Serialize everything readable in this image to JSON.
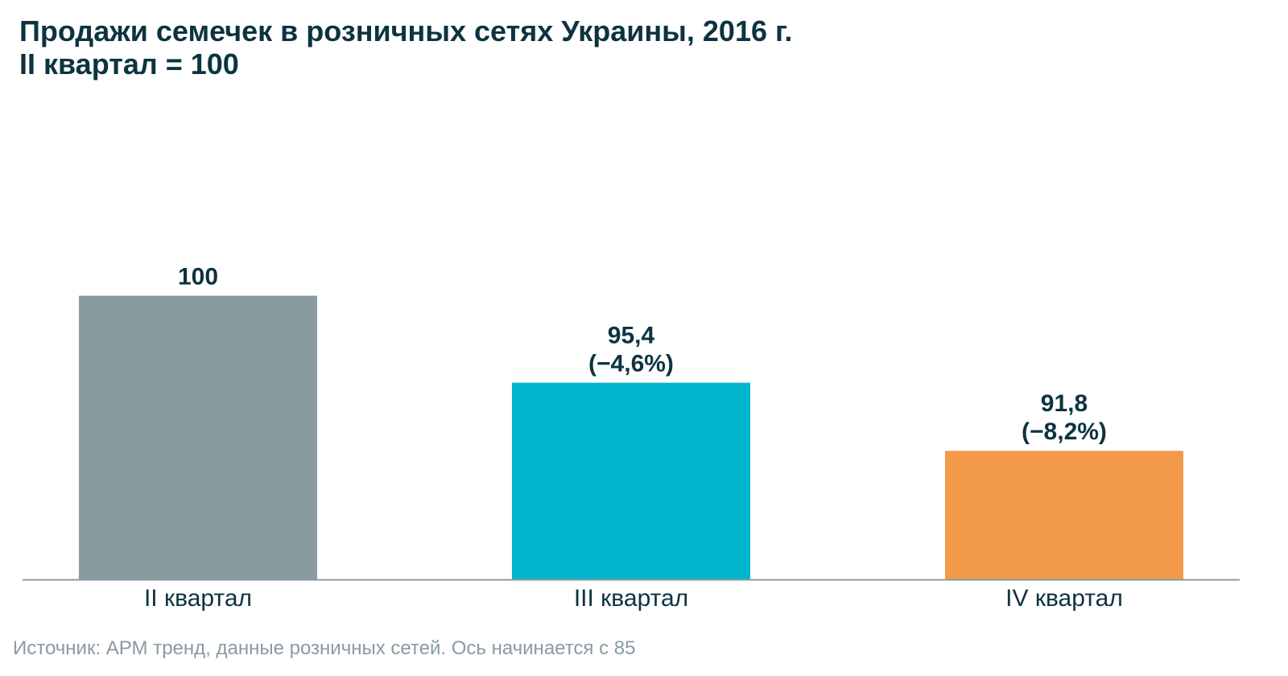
{
  "chart_data": {
    "type": "bar",
    "title": "Продажи семечек в розничных сетях Украины, 2016 г.",
    "subtitle": "II квартал = 100",
    "categories": [
      "II квартал",
      "III квартал",
      "IV квартал"
    ],
    "values": [
      100,
      95.4,
      91.8
    ],
    "data_labels": [
      [
        "100"
      ],
      [
        "95,4",
        "(−4,6%)"
      ],
      [
        "91,8",
        "(−8,2%)"
      ]
    ],
    "colors": [
      "#8a9ba0",
      "#00b5cc",
      "#f29a4a"
    ],
    "ylim": [
      85,
      105
    ],
    "grid": false,
    "legend": "none",
    "xlabel": "",
    "ylabel": ""
  },
  "source": "Источник: АРМ тренд, данные розничных сетей. Ось начинается с 85",
  "colors": {
    "title": "#0d3340",
    "axis": "#8a9ba2",
    "source": "#8a9ba2"
  }
}
